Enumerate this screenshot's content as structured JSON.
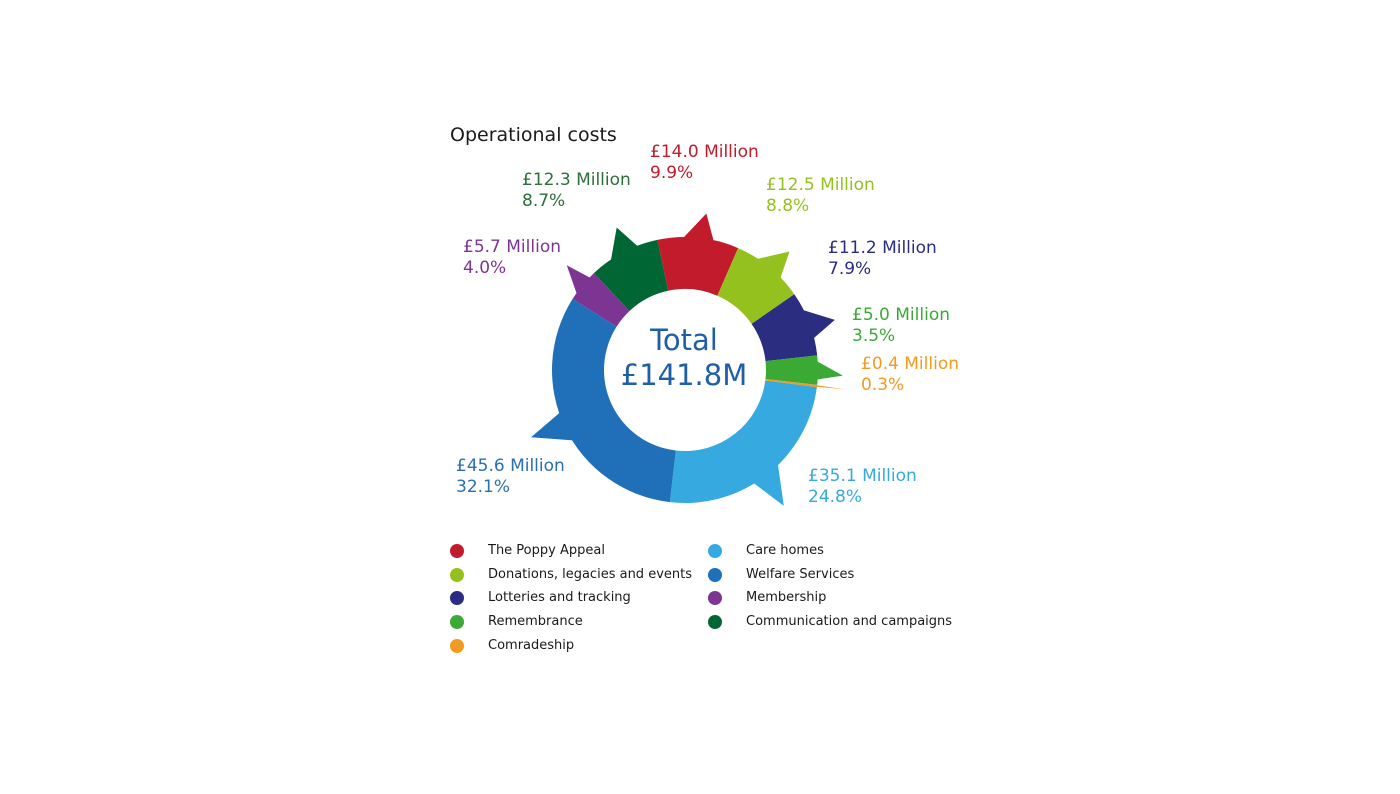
{
  "chart_data": {
    "type": "pie",
    "title": "Operational costs",
    "center_label": "Total",
    "center_value": "£141.8M",
    "slices": [
      {
        "name": "The Poppy Appeal",
        "value": 14.0,
        "value_label": "£14.0 Million",
        "pct_label": "9.9%",
        "color": "#c11b2c"
      },
      {
        "name": "Donations, legacies and events",
        "value": 12.5,
        "value_label": "£12.5 Million",
        "pct_label": "8.8%",
        "color": "#95c11f"
      },
      {
        "name": "Lotteries and tracking",
        "value": 11.2,
        "value_label": "£11.2 Million",
        "pct_label": "7.9%",
        "color": "#2b2d80"
      },
      {
        "name": "Remembrance",
        "value": 5.0,
        "value_label": "£5.0 Million",
        "pct_label": "3.5%",
        "color": "#3aaa35"
      },
      {
        "name": "Comradeship",
        "value": 0.4,
        "value_label": "£0.4 Million",
        "pct_label": "0.3%",
        "color": "#f39a20"
      },
      {
        "name": "Care homes",
        "value": 35.1,
        "value_label": "£35.1 Million",
        "pct_label": "24.8%",
        "color": "#36a9e1"
      },
      {
        "name": "Welfare Services",
        "value": 45.6,
        "value_label": "£45.6 Million",
        "pct_label": "32.1%",
        "color": "#1f70b8"
      },
      {
        "name": "Membership",
        "value": 5.7,
        "value_label": "£5.7 Million",
        "pct_label": "4.0%",
        "color": "#7d3594"
      },
      {
        "name": "Communication and campaigns",
        "value": 12.3,
        "value_label": "£12.3 Million",
        "pct_label": "8.7%",
        "color": "#006633"
      }
    ],
    "label_colors": {
      "The Poppy Appeal": "#c11b2c",
      "Donations, legacies and events": "#95c11f",
      "Lotteries and tracking": "#2b2d80",
      "Remembrance": "#3aaa35",
      "Comradeship": "#f39a20",
      "Care homes": "#36a9e1",
      "Welfare Services": "#2a6fb0",
      "Membership": "#7d3594",
      "Communication and campaigns": "#2d6e3a"
    },
    "center_color": "#1f5fa8",
    "legend_columns": [
      [
        "The Poppy Appeal",
        "Donations, legacies and events",
        "Lotteries and tracking",
        "Remembrance",
        "Comradeship"
      ],
      [
        "Care homes",
        "Welfare Services",
        "Membership",
        "Communication and campaigns"
      ]
    ],
    "legend_placement": "bottom"
  }
}
